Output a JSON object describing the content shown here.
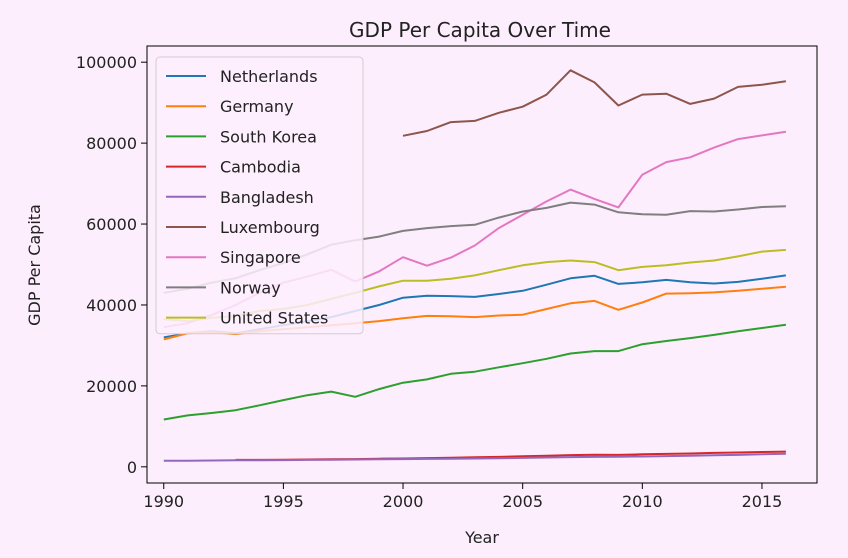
{
  "chart_data": {
    "type": "line",
    "title": "GDP Per Capita Over Time",
    "xlabel": "Year",
    "ylabel": "GDP Per Capita",
    "xlim": [
      1989.3,
      2017.3
    ],
    "ylim": [
      -4000,
      104000
    ],
    "xticks": [
      1990,
      1995,
      2000,
      2005,
      2010,
      2015
    ],
    "yticks": [
      0,
      20000,
      40000,
      60000,
      80000,
      100000
    ],
    "grid": false,
    "legend_position": "top-left",
    "series": [
      {
        "name": "Netherlands",
        "color": "#1f77b4",
        "x": [
          1990,
          1991,
          1992,
          1993,
          1994,
          1995,
          1996,
          1997,
          1998,
          1999,
          2000,
          2001,
          2002,
          2003,
          2004,
          2005,
          2006,
          2007,
          2008,
          2009,
          2010,
          2011,
          2012,
          2013,
          2014,
          2015,
          2016
        ],
        "y": [
          32000,
          33000,
          33500,
          33000,
          34000,
          35000,
          36000,
          37000,
          38500,
          40000,
          41800,
          42300,
          42200,
          42000,
          42700,
          43500,
          45000,
          46600,
          47200,
          45200,
          45600,
          46200,
          45600,
          45300,
          45700,
          46500,
          47300
        ]
      },
      {
        "name": "Germany",
        "color": "#ff7f0e",
        "x": [
          1990,
          1991,
          1992,
          1993,
          1994,
          1995,
          1996,
          1997,
          1998,
          1999,
          2000,
          2001,
          2002,
          2003,
          2004,
          2005,
          2006,
          2007,
          2008,
          2009,
          2010,
          2011,
          2012,
          2013,
          2014,
          2015,
          2016
        ],
        "y": [
          31500,
          33000,
          33300,
          32800,
          33500,
          34000,
          34500,
          35000,
          35500,
          36000,
          36700,
          37300,
          37200,
          37000,
          37400,
          37600,
          39000,
          40400,
          41000,
          38800,
          40600,
          42800,
          42900,
          43100,
          43500,
          44000,
          44500
        ]
      },
      {
        "name": "South Korea",
        "color": "#2ca02c",
        "x": [
          1990,
          1991,
          1992,
          1993,
          1994,
          1995,
          1996,
          1997,
          1998,
          1999,
          2000,
          2001,
          2002,
          2003,
          2004,
          2005,
          2006,
          2007,
          2008,
          2009,
          2010,
          2011,
          2012,
          2013,
          2014,
          2015,
          2016
        ],
        "y": [
          11700,
          12700,
          13300,
          14000,
          15200,
          16500,
          17700,
          18600,
          17300,
          19200,
          20800,
          21600,
          23000,
          23500,
          24600,
          25600,
          26700,
          28000,
          28600,
          28600,
          30300,
          31100,
          31800,
          32600,
          33500,
          34300,
          35100
        ]
      },
      {
        "name": "Cambodia",
        "color": "#d62728",
        "x": [
          1993,
          1994,
          1995,
          1996,
          1997,
          1998,
          1999,
          2000,
          2001,
          2002,
          2003,
          2004,
          2005,
          2006,
          2007,
          2008,
          2009,
          2010,
          2011,
          2012,
          2013,
          2014,
          2015,
          2016
        ],
        "y": [
          1700,
          1700,
          1750,
          1800,
          1850,
          1900,
          2000,
          2050,
          2150,
          2250,
          2350,
          2450,
          2600,
          2750,
          2900,
          3000,
          2950,
          3100,
          3200,
          3300,
          3450,
          3550,
          3650,
          3750
        ]
      },
      {
        "name": "Bangladesh",
        "color": "#9467bd",
        "x": [
          1990,
          1991,
          1992,
          1993,
          1994,
          1995,
          1996,
          1997,
          1998,
          1999,
          2000,
          2001,
          2002,
          2003,
          2004,
          2005,
          2006,
          2007,
          2008,
          2009,
          2010,
          2011,
          2012,
          2013,
          2014,
          2015,
          2016
        ],
        "y": [
          1500,
          1500,
          1550,
          1600,
          1600,
          1650,
          1700,
          1750,
          1800,
          1850,
          1900,
          1950,
          2000,
          2050,
          2100,
          2200,
          2300,
          2400,
          2450,
          2500,
          2550,
          2650,
          2750,
          2850,
          2950,
          3100,
          3250
        ]
      },
      {
        "name": "Luxembourg",
        "color": "#8c564b",
        "x": [
          2000,
          2001,
          2002,
          2003,
          2004,
          2005,
          2006,
          2007,
          2008,
          2009,
          2010,
          2011,
          2012,
          2013,
          2014,
          2015,
          2016
        ],
        "y": [
          81800,
          83000,
          85200,
          85500,
          87500,
          89000,
          92000,
          98000,
          95000,
          89300,
          92000,
          92200,
          89700,
          91000,
          93900,
          94400,
          95300
        ]
      },
      {
        "name": "Singapore",
        "color": "#e377c2",
        "x": [
          1990,
          1991,
          1992,
          1993,
          1994,
          1995,
          1996,
          1997,
          1998,
          1999,
          2000,
          2001,
          2002,
          2003,
          2004,
          2005,
          2006,
          2007,
          2008,
          2009,
          2010,
          2011,
          2012,
          2013,
          2014,
          2015,
          2016
        ],
        "y": [
          34500,
          35500,
          37500,
          40000,
          43000,
          45500,
          47000,
          48700,
          45800,
          48300,
          51800,
          49700,
          51700,
          54700,
          59000,
          62300,
          65600,
          68500,
          66200,
          64100,
          72200,
          75300,
          76500,
          78900,
          81000,
          81900,
          82800
        ]
      },
      {
        "name": "Norway",
        "color": "#7f7f7f",
        "x": [
          1990,
          1991,
          1992,
          1993,
          1994,
          1995,
          1996,
          1997,
          1998,
          1999,
          2000,
          2001,
          2002,
          2003,
          2004,
          2005,
          2006,
          2007,
          2008,
          2009,
          2010,
          2011,
          2012,
          2013,
          2014,
          2015,
          2016
        ],
        "y": [
          43000,
          44000,
          45500,
          46600,
          48600,
          50400,
          52500,
          54900,
          56000,
          56900,
          58300,
          59000,
          59500,
          59800,
          61600,
          63100,
          64000,
          65300,
          64800,
          62900,
          62400,
          62300,
          63200,
          63100,
          63600,
          64200,
          64400
        ]
      },
      {
        "name": "United States",
        "color": "#bcbd22",
        "x": [
          1990,
          1991,
          1992,
          1993,
          1994,
          1995,
          1996,
          1997,
          1998,
          1999,
          2000,
          2001,
          2002,
          2003,
          2004,
          2005,
          2006,
          2007,
          2008,
          2009,
          2010,
          2011,
          2012,
          2013,
          2014,
          2015,
          2016
        ],
        "y": [
          36500,
          36000,
          36800,
          37300,
          38500,
          39000,
          40000,
          41500,
          43000,
          44600,
          46000,
          46000,
          46500,
          47300,
          48600,
          49800,
          50600,
          51000,
          50600,
          48600,
          49400,
          49800,
          50500,
          51000,
          52000,
          53200,
          53600
        ]
      }
    ]
  }
}
